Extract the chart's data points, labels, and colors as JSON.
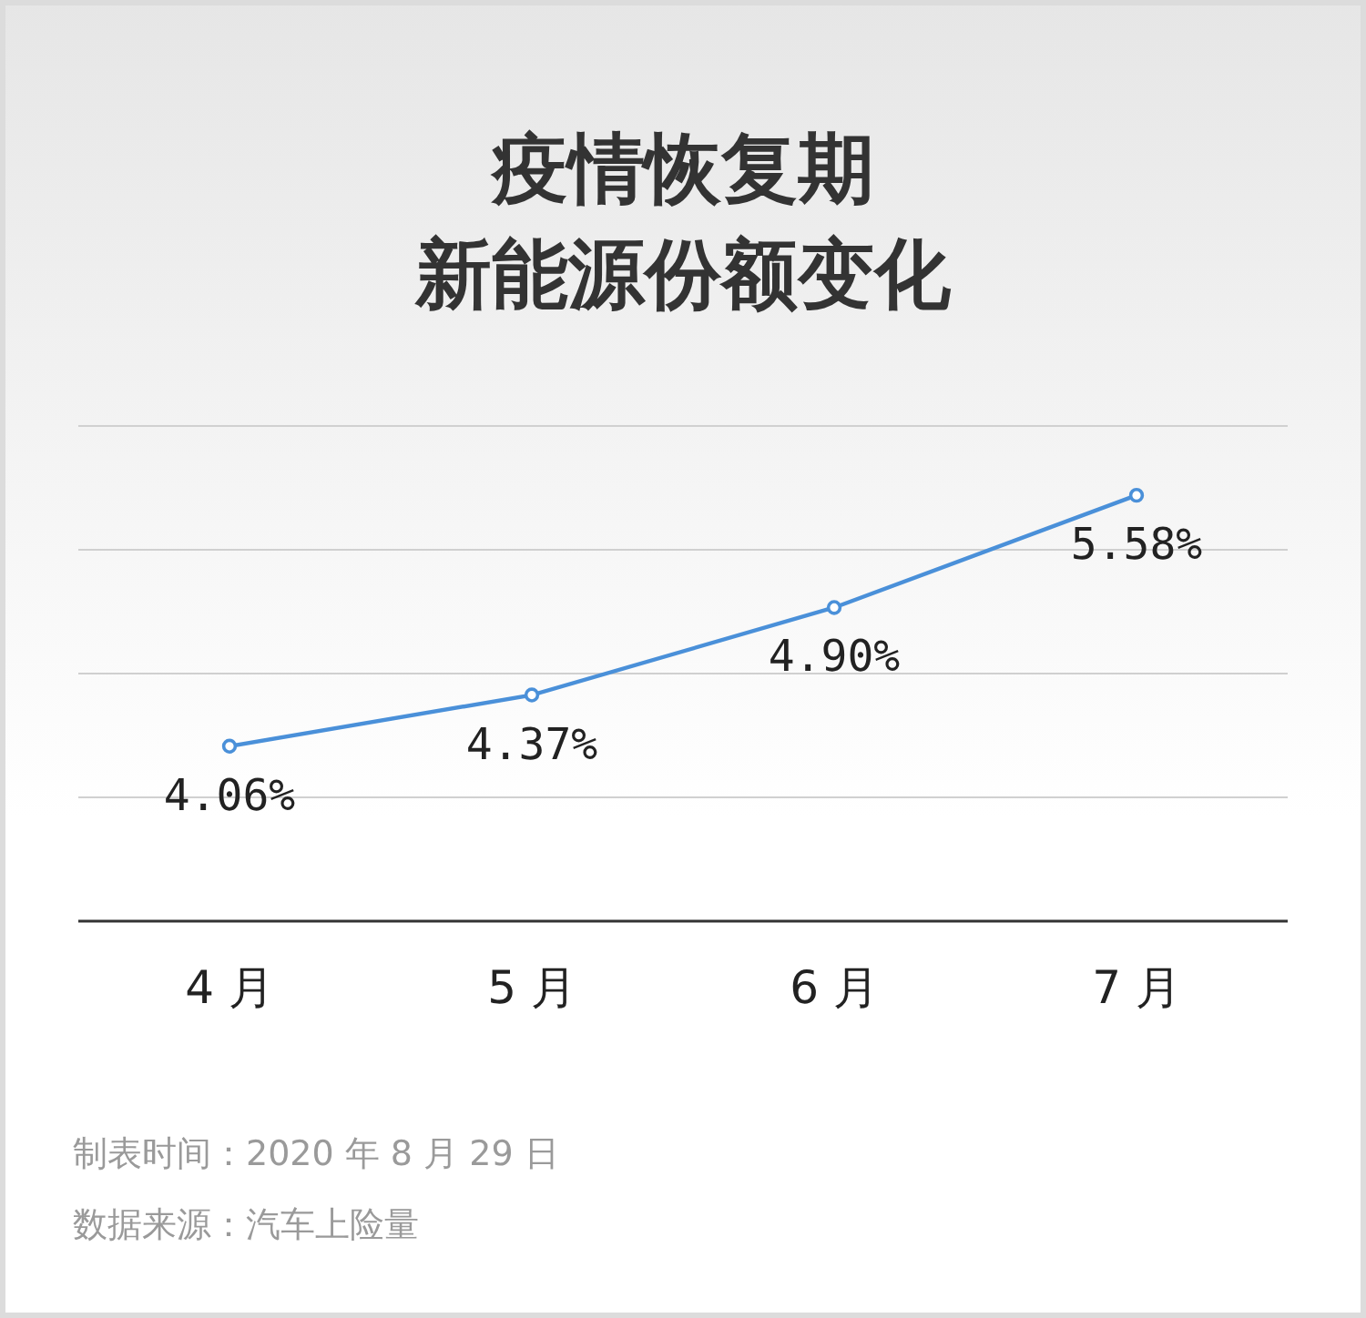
{
  "chart_data": {
    "type": "line",
    "title": "疫情恢复期新能源份额变化",
    "categories": [
      "4 月",
      "5 月",
      "6 月",
      "7 月"
    ],
    "values": [
      4.06,
      4.37,
      4.9,
      5.58
    ],
    "value_labels": [
      "4.06%",
      "4.37%",
      "4.90%",
      "5.58%"
    ],
    "color": "#4a90d9",
    "marker": "circle",
    "ylim": [
      3,
      6
    ],
    "yticks": [
      {
        "value": 3.75,
        "label": null
      },
      {
        "value": 4.5,
        "label": null
      },
      {
        "value": 5.25,
        "label": null
      },
      {
        "value": 6,
        "label": null
      }
    ],
    "grid": "y",
    "tick_labels": "x",
    "annotations": [
      "制表时间：2020 年 8 月 29 日",
      "数据来源：汽车上险量"
    ]
  }
}
